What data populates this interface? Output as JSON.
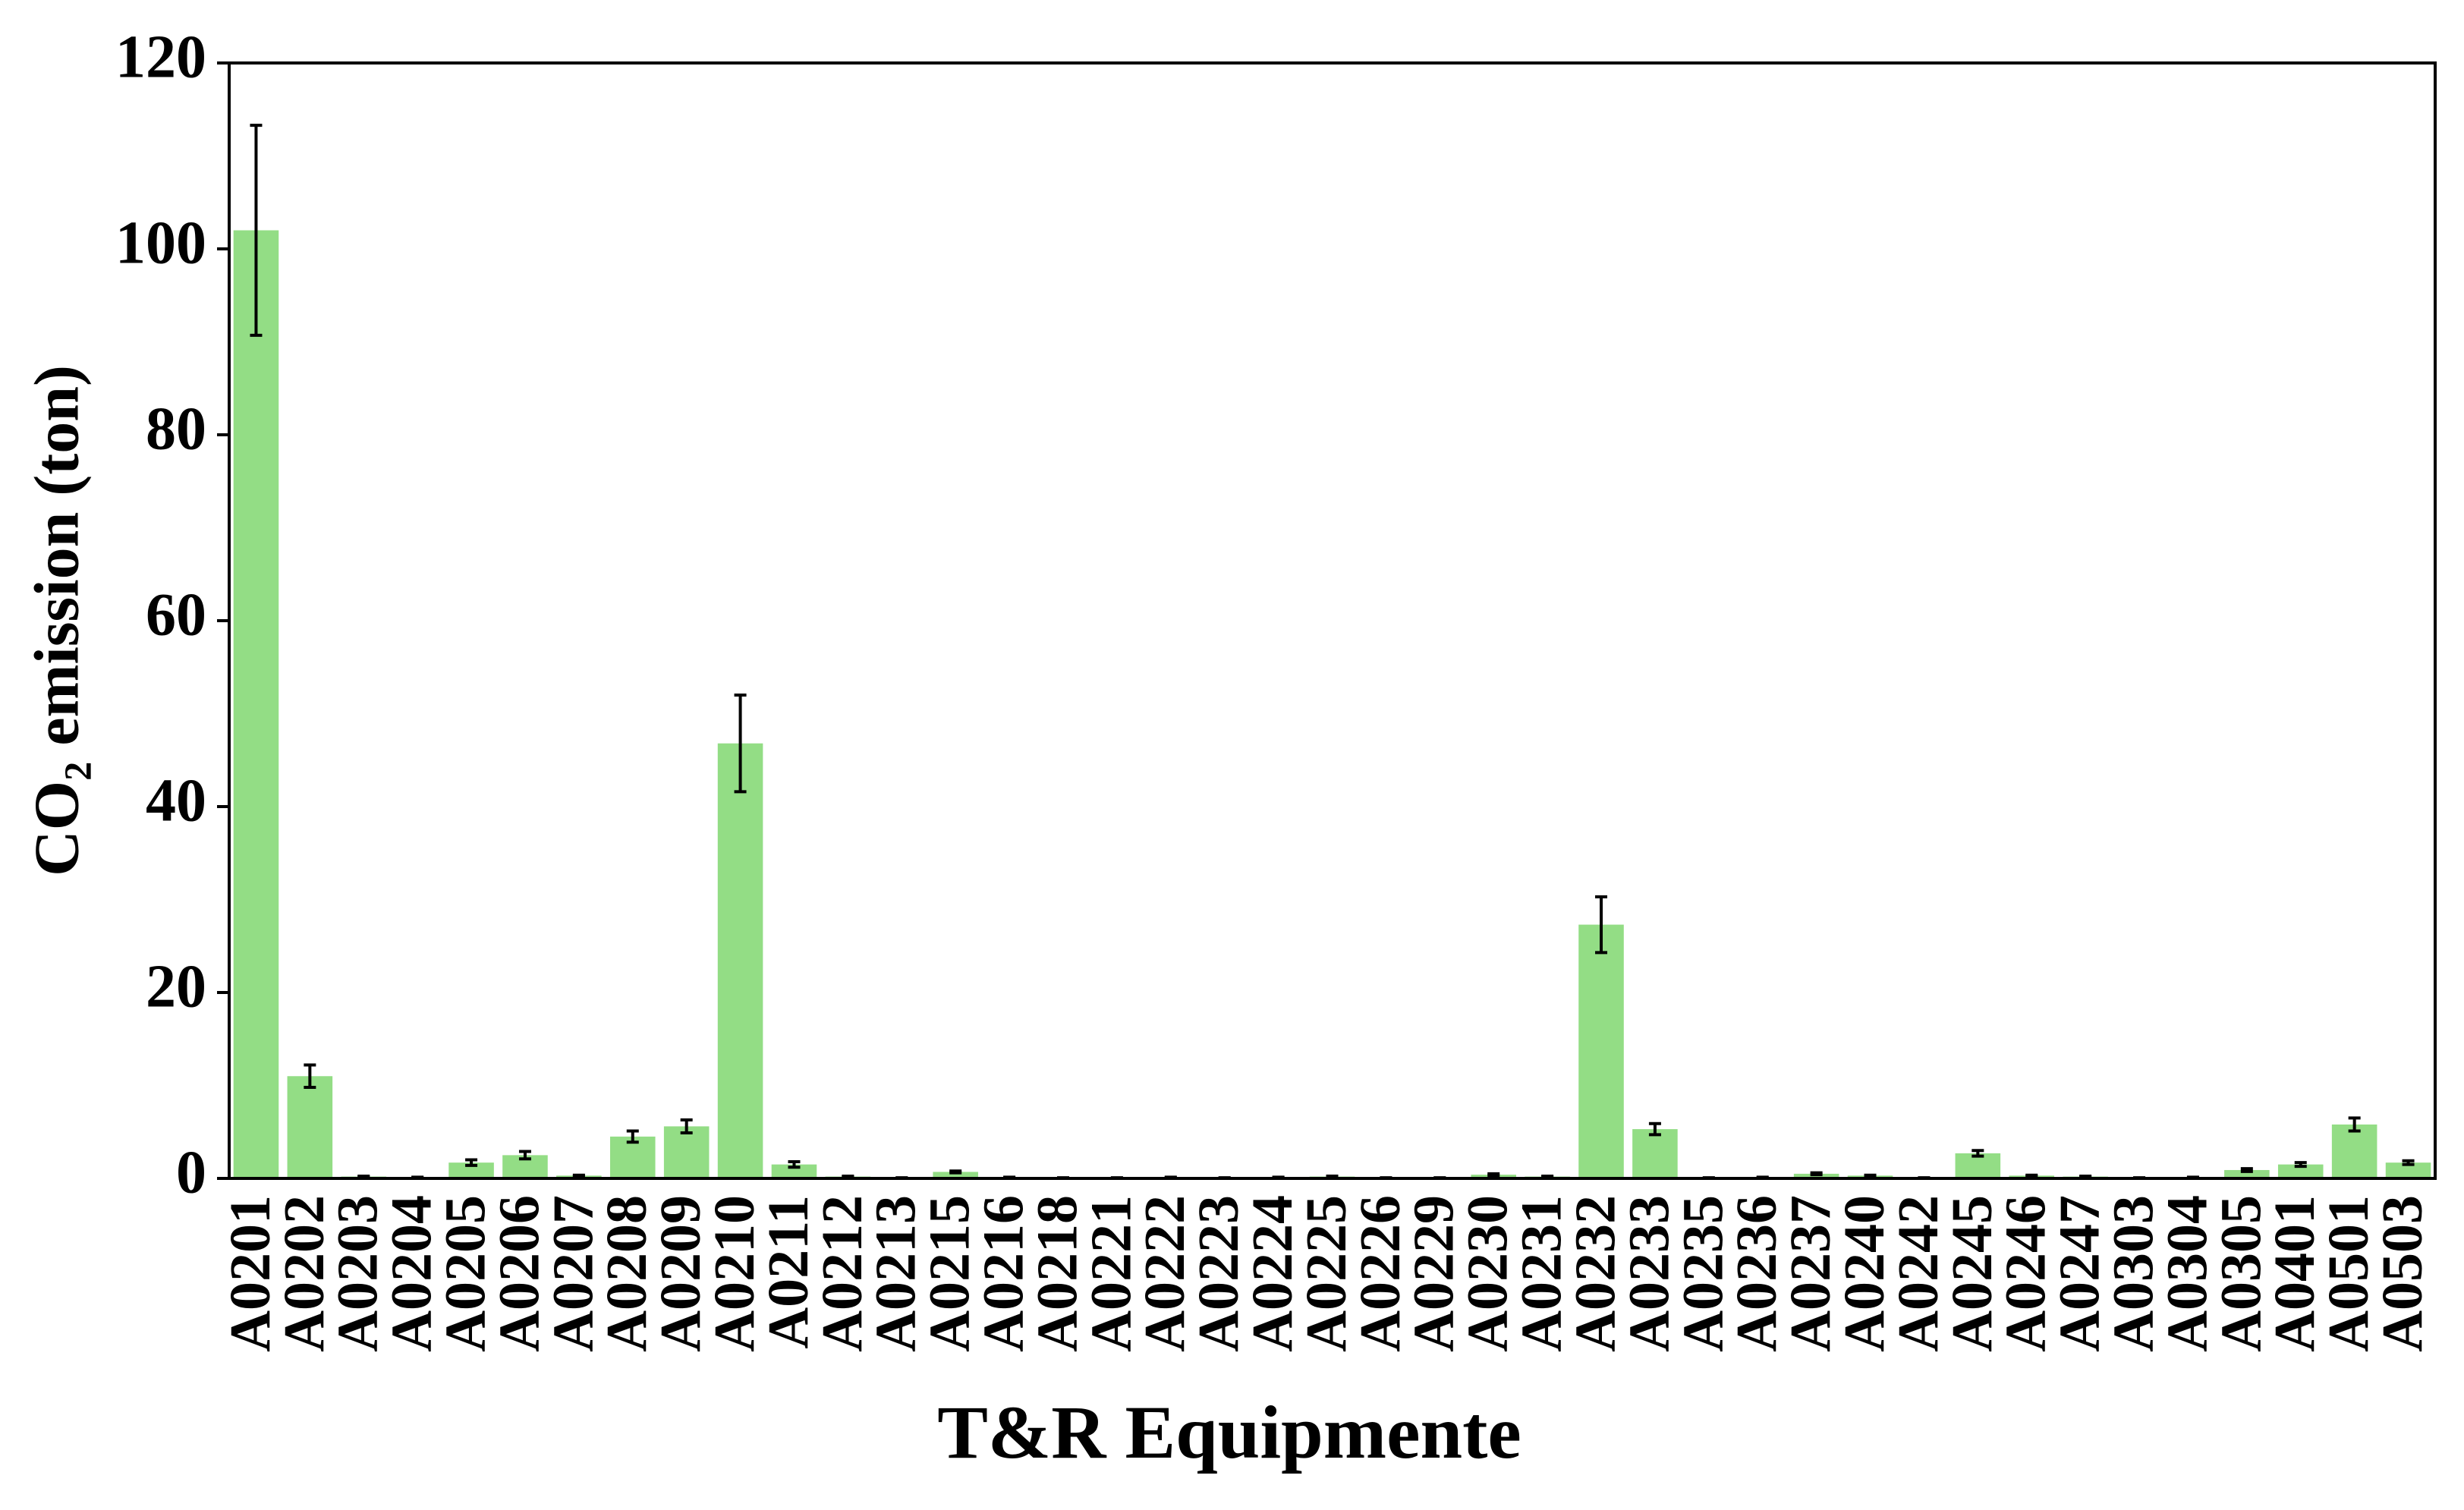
{
  "chart_data": {
    "type": "bar",
    "xlabel": "T&R Equipmente",
    "ylabel": "CO₂ emission (ton)",
    "categories": [
      "A0201",
      "A0202",
      "A0203",
      "A0204",
      "A0205",
      "A0206",
      "A0207",
      "A0208",
      "A0209",
      "A0210",
      "A0211",
      "A0212",
      "A0213",
      "A0215",
      "A0216",
      "A0218",
      "A0221",
      "A0222",
      "A0223",
      "A0224",
      "A0225",
      "A0226",
      "A0229",
      "A0230",
      "A0231",
      "A0232",
      "A0233",
      "A0235",
      "A0236",
      "A0237",
      "A0240",
      "A0242",
      "A0245",
      "A0246",
      "A0247",
      "A0303",
      "A0304",
      "A0305",
      "A0401",
      "A0501",
      "A0503"
    ],
    "values": [
      102,
      11,
      0.2,
      0.1,
      1.7,
      2.5,
      0.3,
      4.5,
      5.6,
      46.8,
      1.5,
      0.2,
      0.05,
      0.7,
      0.1,
      0.05,
      0.05,
      0.1,
      0.05,
      0.1,
      0.2,
      0.05,
      0.05,
      0.4,
      0.2,
      27.3,
      5.3,
      0.05,
      0.1,
      0.5,
      0.3,
      0.05,
      2.7,
      0.3,
      0.2,
      0.05,
      0.1,
      0.9,
      1.5,
      5.8,
      1.7
    ],
    "errors": [
      11.3,
      1.2,
      0.05,
      0.03,
      0.3,
      0.4,
      0.05,
      0.6,
      0.7,
      5.2,
      0.3,
      0.05,
      0.02,
      0.1,
      0.03,
      0.02,
      0.02,
      0.03,
      0.02,
      0.03,
      0.05,
      0.02,
      0.02,
      0.1,
      0.05,
      3,
      0.6,
      0.02,
      0.03,
      0.1,
      0.05,
      0.02,
      0.3,
      0.05,
      0.05,
      0.02,
      0.03,
      0.15,
      0.2,
      0.7,
      0.2
    ],
    "color": "#93dd85",
    "ylim": [
      0,
      120
    ],
    "yticks": [
      0,
      20,
      40,
      60,
      80,
      100,
      120
    ],
    "grid": false
  }
}
